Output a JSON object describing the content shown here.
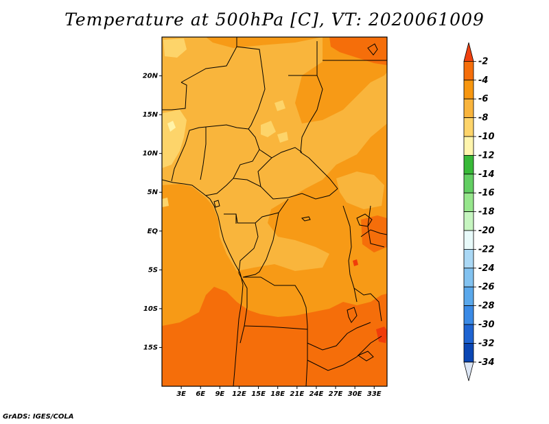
{
  "title": "Temperature at 500hPa [C], VT: 2020061009",
  "credit": "GrADS: IGES/COLA",
  "map": {
    "type": "filled-contour-map",
    "lon_range": [
      0,
      35
    ],
    "lat_range": [
      -20,
      25
    ],
    "lat_ticks": [
      {
        "label": "20N",
        "value": 20
      },
      {
        "label": "15N",
        "value": 15
      },
      {
        "label": "10N",
        "value": 10
      },
      {
        "label": "5N",
        "value": 5
      },
      {
        "label": "EQ",
        "value": 0
      },
      {
        "label": "5S",
        "value": -5
      },
      {
        "label": "10S",
        "value": -10
      },
      {
        "label": "15S",
        "value": -15
      }
    ],
    "lon_ticks": [
      {
        "label": "3E",
        "value": 3
      },
      {
        "label": "6E",
        "value": 6
      },
      {
        "label": "9E",
        "value": 9
      },
      {
        "label": "12E",
        "value": 12
      },
      {
        "label": "15E",
        "value": 15
      },
      {
        "label": "18E",
        "value": 18
      },
      {
        "label": "21E",
        "value": 21
      },
      {
        "label": "24E",
        "value": 24
      },
      {
        "label": "27E",
        "value": 27
      },
      {
        "label": "30E",
        "value": 30
      },
      {
        "label": "33E",
        "value": 33
      }
    ],
    "field_colors": {
      "lt_-2": "#f03c0a",
      "-4_to_-2": "#f56e0a",
      "-6_to_-4": "#f79a16",
      "-8_to_-6": "#f9b53c",
      "-10_to_-8": "#fdd46a",
      "-12_to_-10": "#fff3a8",
      "border": "#000000"
    }
  },
  "colorbar": {
    "labels": [
      "-2",
      "-4",
      "-6",
      "-8",
      "-10",
      "-12",
      "-14",
      "-16",
      "-18",
      "-20",
      "-22",
      "-24",
      "-26",
      "-28",
      "-30",
      "-32",
      "-34"
    ],
    "colors": [
      "#f0410f",
      "#f56e0a",
      "#f7960f",
      "#f9b43c",
      "#fdd46a",
      "#fff5ad",
      "#38b938",
      "#62ce62",
      "#96e68c",
      "#c6f5c0",
      "#e8fafa",
      "#aad8f5",
      "#82c2f0",
      "#5aa8eb",
      "#3a8ae6",
      "#1e64d2",
      "#0a46b4",
      "#0a1e78",
      "#dce6f5"
    ]
  }
}
